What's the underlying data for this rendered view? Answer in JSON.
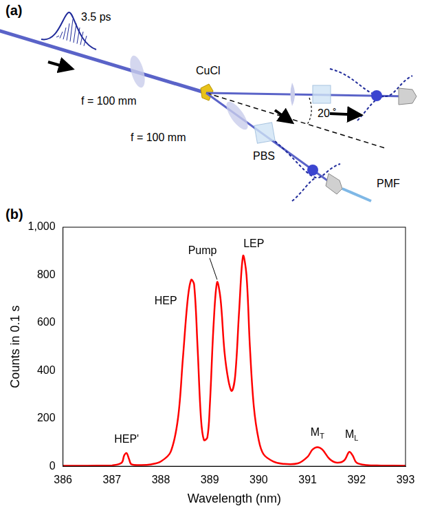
{
  "panel_a": {
    "letter": "(a)",
    "pulse_width": "3.5 ps",
    "crystal": "CuCl",
    "lens_upper": "f = 100 mm",
    "lens_lower": "f = 100 mm",
    "angle": "20 ˚",
    "splitter": "PBS",
    "fiber": "PMF"
  },
  "chart_data": {
    "panel": "(b)",
    "type": "line",
    "x_label": "Wavelength (nm)",
    "y_label": "Counts in 0.1 s",
    "x": [
      386.0,
      386.5,
      386.9,
      387.0,
      387.2,
      387.25,
      387.3,
      387.35,
      387.4,
      387.6,
      387.8,
      388.0,
      388.2,
      388.35,
      388.45,
      388.55,
      388.62,
      388.68,
      388.75,
      388.82,
      388.88,
      388.95,
      389.0,
      389.08,
      389.15,
      389.22,
      389.3,
      389.38,
      389.45,
      389.52,
      389.6,
      389.68,
      389.75,
      389.82,
      389.9,
      390.0,
      390.1,
      390.3,
      390.5,
      390.8,
      391.0,
      391.1,
      391.2,
      391.3,
      391.45,
      391.6,
      391.75,
      391.85,
      391.92,
      392.0,
      392.2,
      392.5,
      393.0
    ],
    "values": [
      2,
      2,
      3,
      3,
      15,
      45,
      55,
      30,
      8,
      5,
      8,
      20,
      60,
      200,
      450,
      700,
      780,
      760,
      500,
      200,
      110,
      120,
      250,
      600,
      770,
      700,
      480,
      360,
      315,
      380,
      650,
      880,
      800,
      500,
      250,
      110,
      50,
      20,
      10,
      12,
      40,
      70,
      80,
      70,
      30,
      15,
      25,
      60,
      45,
      15,
      5,
      3,
      2
    ],
    "color": "#ff0000",
    "xlim": [
      386,
      393
    ],
    "xticks": [
      386,
      387,
      388,
      389,
      390,
      391,
      392,
      393
    ],
    "ylim": [
      0,
      1000
    ],
    "yticks": [
      0,
      200,
      400,
      600,
      800,
      1000
    ],
    "grid": false,
    "annotations": [
      {
        "text": "HEP'",
        "x": 387.3,
        "y": 110
      },
      {
        "text": "HEP",
        "x": 388.1,
        "y": 690
      },
      {
        "text": "Pump",
        "x": 388.85,
        "y": 900,
        "points_to": [
          389.15,
          775
        ]
      },
      {
        "text": "LEP",
        "x": 389.9,
        "y": 930
      },
      {
        "text": "M",
        "subscript": "T",
        "x": 391.2,
        "y": 140
      },
      {
        "text": "M",
        "subscript": "L",
        "x": 391.9,
        "y": 130
      }
    ]
  }
}
